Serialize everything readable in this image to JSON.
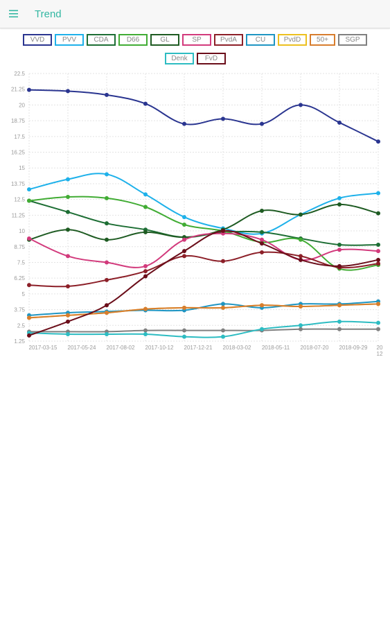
{
  "app": {
    "title": "Trend",
    "menu_icon": "menu-icon",
    "accent_color": "#33b7a2"
  },
  "chart_data": {
    "type": "line",
    "x": [
      "2017-03-15",
      "2017-05-24",
      "2017-08-02",
      "2017-10-12",
      "2017-12-21",
      "2018-03-02",
      "2018-05-11",
      "2018-07-20",
      "2018-09-29",
      "2018-12"
    ],
    "x_tick_labels": [
      "2017-03-15",
      "2017-05-24",
      "2017-08-02",
      "2017-10-12",
      "2017-12-21",
      "2018-03-02",
      "2018-05-11",
      "2018-07-20",
      "2018-09-29",
      "20 12"
    ],
    "y_ticks": [
      "22.5",
      "21.25",
      "20",
      "18.75",
      "17.5",
      "16.25",
      "15",
      "13.75",
      "12.5",
      "11.25",
      "10",
      "8.75",
      "7.5",
      "6.25",
      "5",
      "3.75",
      "2.5",
      "1.25"
    ],
    "ylim": [
      1.25,
      22.5
    ],
    "grid": true,
    "legend_position": "top",
    "series": [
      {
        "name": "VVD",
        "color": "#2a3590",
        "values": [
          21.2,
          21.1,
          20.8,
          20.1,
          18.5,
          18.9,
          18.5,
          20.0,
          18.6,
          17.1
        ]
      },
      {
        "name": "PVV",
        "color": "#1eb1ea",
        "values": [
          13.3,
          14.1,
          14.5,
          12.9,
          11.1,
          10.2,
          9.8,
          11.3,
          12.6,
          13.0
        ]
      },
      {
        "name": "CDA",
        "color": "#1d6e34",
        "values": [
          12.4,
          11.5,
          10.6,
          10.1,
          9.5,
          9.9,
          9.9,
          9.4,
          8.9,
          8.9
        ]
      },
      {
        "name": "D66",
        "color": "#41ac34",
        "values": [
          12.4,
          12.7,
          12.6,
          11.9,
          10.5,
          10.0,
          9.1,
          9.3,
          7.0,
          7.3
        ]
      },
      {
        "name": "GL",
        "color": "#1e5b22",
        "values": [
          9.3,
          10.1,
          9.3,
          9.9,
          9.5,
          10.1,
          11.6,
          11.3,
          12.1,
          11.4
        ]
      },
      {
        "name": "SP",
        "color": "#d23a7c",
        "values": [
          9.4,
          8.0,
          7.5,
          7.2,
          9.3,
          9.8,
          9.3,
          7.7,
          8.5,
          8.4
        ]
      },
      {
        "name": "PvdA",
        "color": "#8c1f28",
        "values": [
          5.7,
          5.6,
          6.1,
          6.8,
          8.0,
          7.6,
          8.3,
          8.0,
          7.1,
          7.4
        ]
      },
      {
        "name": "CU",
        "color": "#1f95c2",
        "values": [
          3.3,
          3.5,
          3.6,
          3.7,
          3.7,
          4.2,
          3.9,
          4.2,
          4.2,
          4.4
        ]
      },
      {
        "name": "PvdD",
        "color": "#ecc01f",
        "values": [
          3.1,
          3.3,
          3.5,
          3.8,
          3.9,
          3.9,
          4.1,
          4.0,
          4.1,
          4.2
        ]
      },
      {
        "name": "50+",
        "color": "#d77d2e",
        "values": [
          3.1,
          3.3,
          3.5,
          3.8,
          3.9,
          3.9,
          4.1,
          4.0,
          4.1,
          4.2
        ]
      },
      {
        "name": "SGP",
        "color": "#808080",
        "values": [
          2.0,
          2.0,
          2.0,
          2.1,
          2.1,
          2.1,
          2.1,
          2.2,
          2.2,
          2.2
        ]
      },
      {
        "name": "Denk",
        "color": "#2dbcc2",
        "values": [
          1.9,
          1.8,
          1.8,
          1.8,
          1.6,
          1.6,
          2.2,
          2.5,
          2.8,
          2.7
        ]
      },
      {
        "name": "FvD",
        "color": "#6b0e1a",
        "values": [
          1.7,
          2.8,
          4.1,
          6.4,
          8.4,
          10.0,
          9.0,
          7.7,
          7.2,
          7.7
        ]
      }
    ]
  }
}
